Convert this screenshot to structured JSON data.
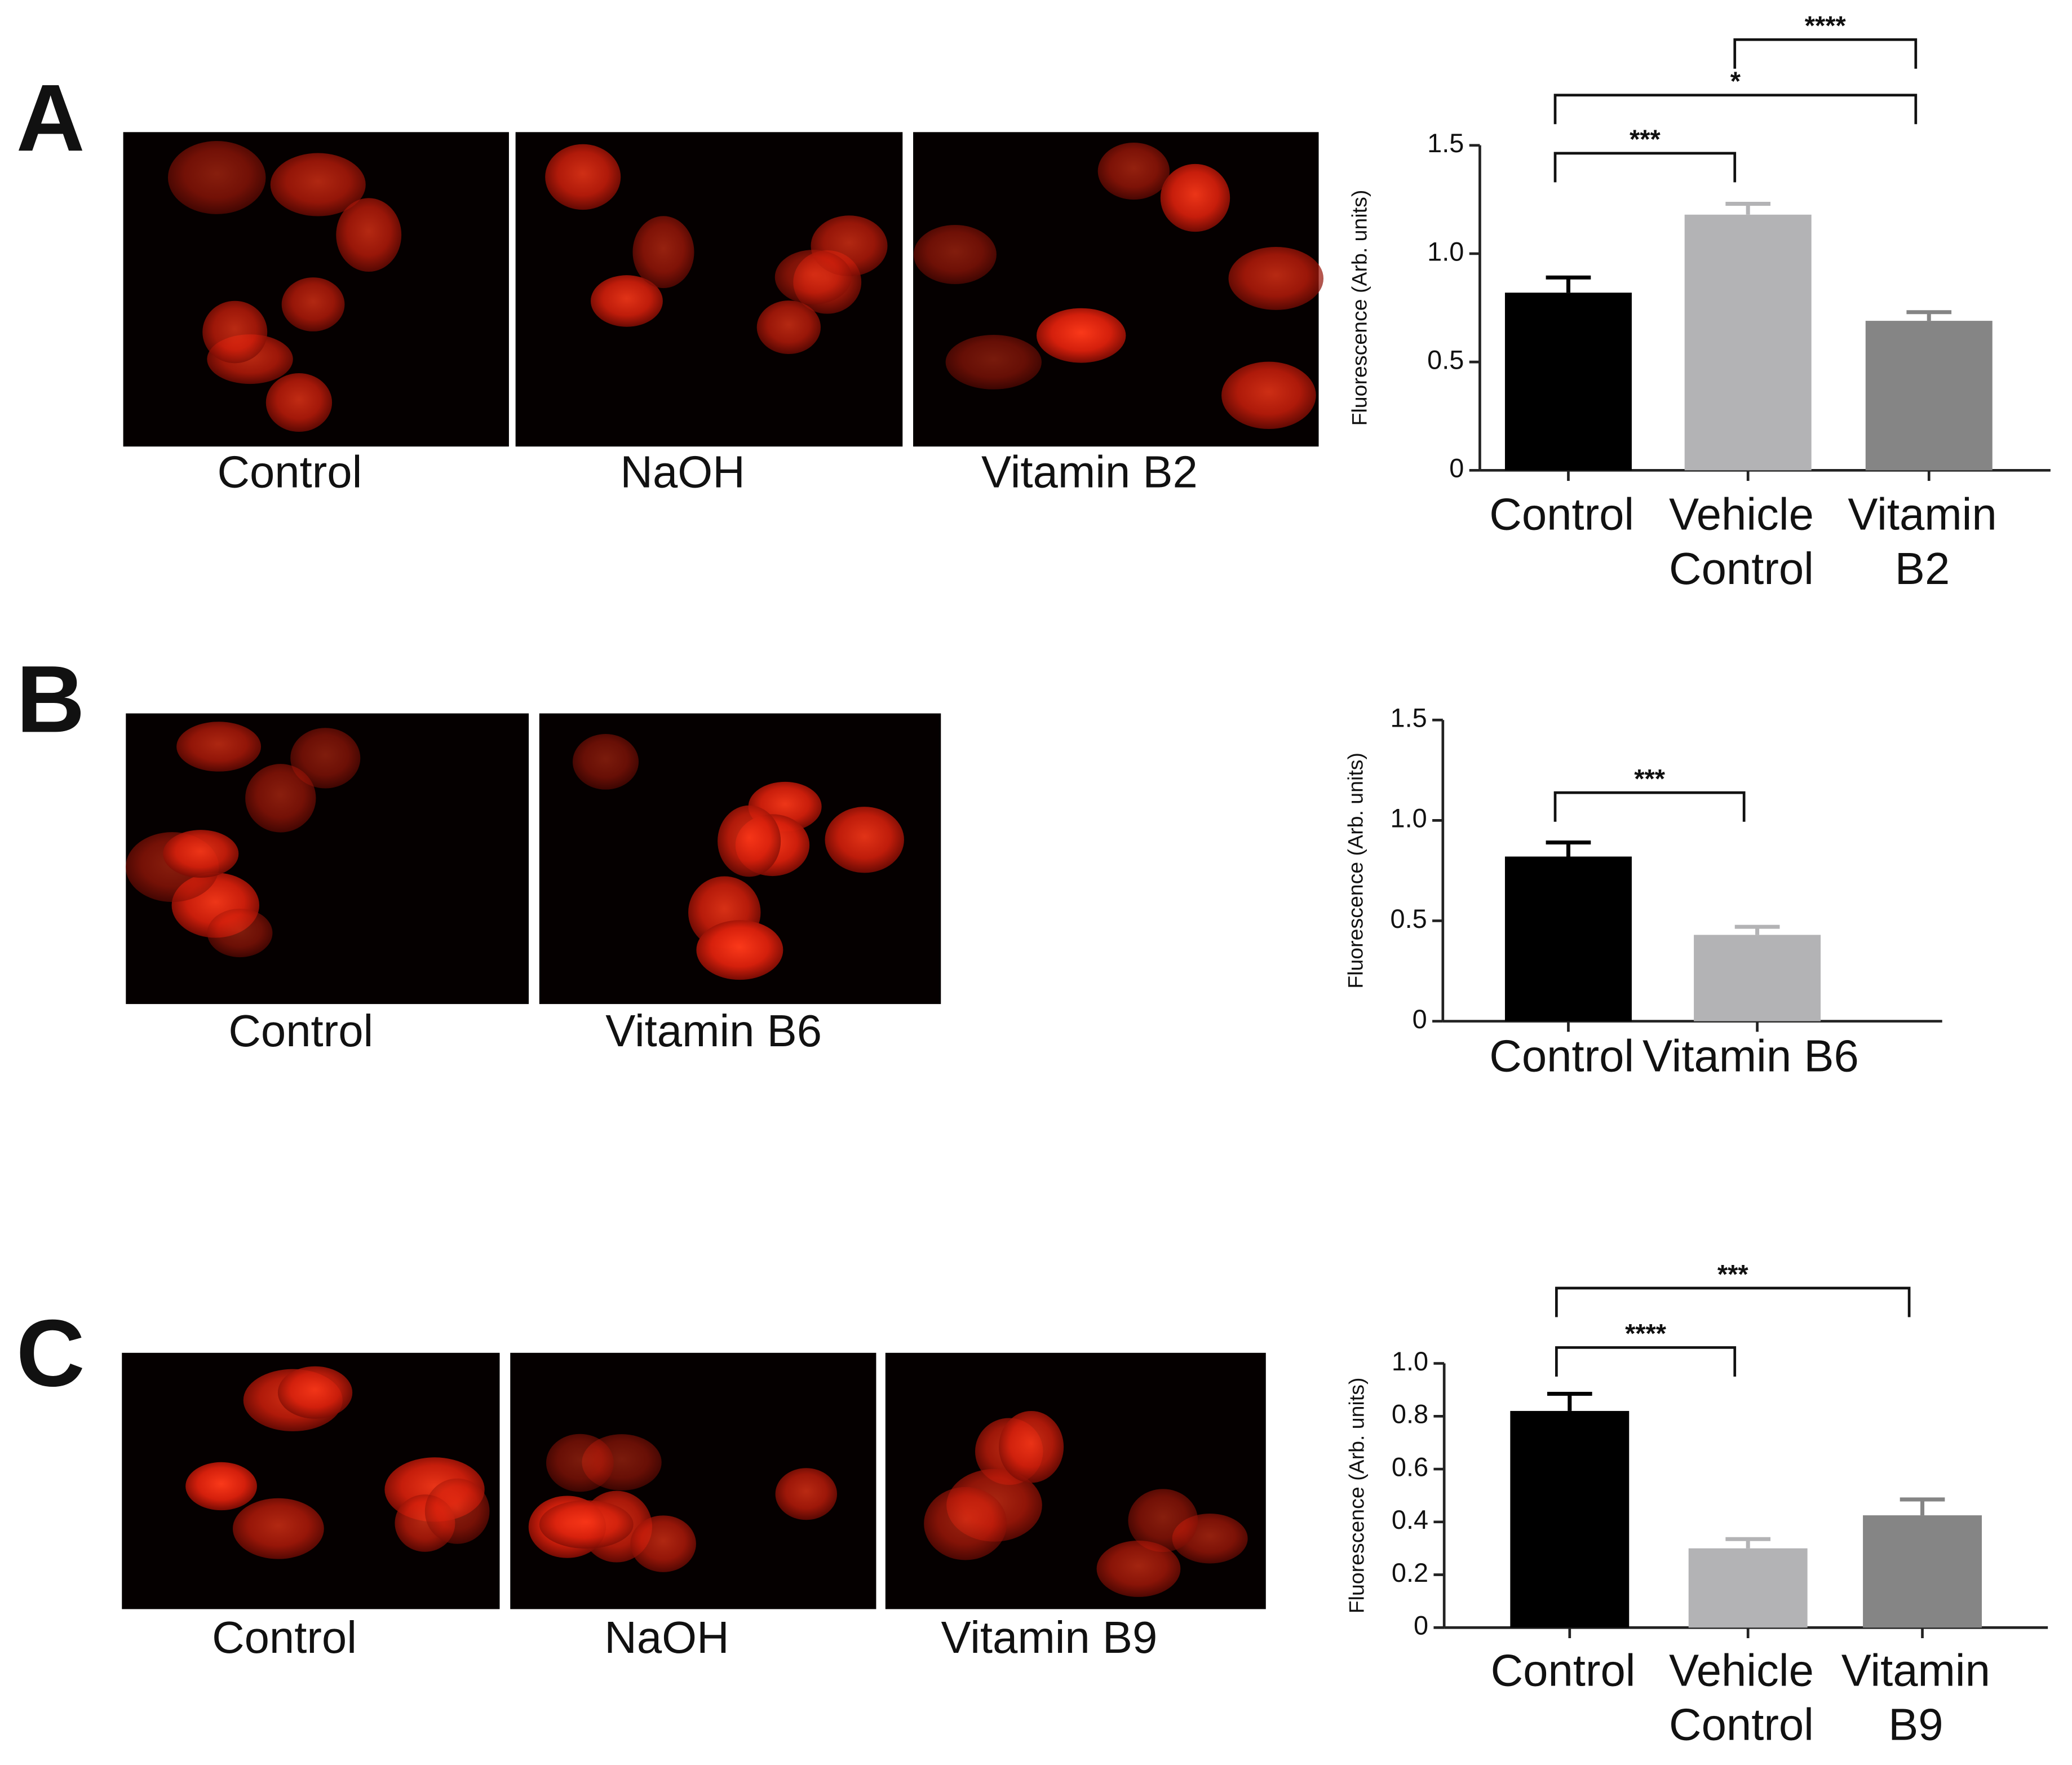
{
  "panels": [
    {
      "letter": "A",
      "images": [
        "Control",
        "NaOH",
        "Vitamin B2"
      ]
    },
    {
      "letter": "B",
      "images": [
        "Control",
        "Vitamin B6"
      ]
    },
    {
      "letter": "C",
      "images": [
        "Control",
        "NaOH",
        "Vitamin B9"
      ]
    }
  ],
  "chart_data": [
    {
      "type": "bar",
      "ylabel": "Fluorescence (Arb. units)",
      "categories": [
        "Control",
        "Vehicle Control",
        "Vitamin B2"
      ],
      "values": [
        0.82,
        1.18,
        0.69
      ],
      "errors": [
        0.07,
        0.05,
        0.04
      ],
      "colors": [
        "#000000",
        "#b3b3b5",
        "#858585"
      ],
      "ylim": [
        0,
        1.5
      ],
      "yticks": [
        0,
        0.5,
        {
          "value": 1,
          "label": "1.0"
        },
        1.5
      ],
      "significance": [
        {
          "from": 0,
          "to": 1,
          "label": "***"
        },
        {
          "from": 0,
          "to": 2,
          "label": "*"
        },
        {
          "from": 1,
          "to": 2,
          "label": "****"
        }
      ]
    },
    {
      "type": "bar",
      "ylabel": "Fluorescence (Arb. units)",
      "categories": [
        "Control",
        "Vitamin B6"
      ],
      "values": [
        0.82,
        0.43
      ],
      "errors": [
        0.07,
        0.04
      ],
      "colors": [
        "#000000",
        "#b3b3b5"
      ],
      "ylim": [
        0,
        1.5
      ],
      "yticks": [
        0,
        0.5,
        {
          "value": 1,
          "label": "1.0"
        },
        1.5
      ],
      "significance": [
        {
          "from": 0,
          "to": 1,
          "label": "***"
        }
      ]
    },
    {
      "type": "bar",
      "ylabel": "Fluorescence (Arb. units)",
      "categories": [
        "Control",
        "Vehicle Control",
        "Vitamin B9"
      ],
      "values": [
        0.82,
        0.3,
        0.425
      ],
      "errors": [
        0.065,
        0.035,
        0.06
      ],
      "colors": [
        "#000000",
        "#b3b3b5",
        "#858585"
      ],
      "ylim": [
        0,
        1
      ],
      "yticks": [
        0,
        0.2,
        0.4,
        0.6,
        0.8,
        {
          "value": 1,
          "label": "1.0"
        }
      ],
      "significance": [
        {
          "from": 0,
          "to": 1,
          "label": "****"
        },
        {
          "from": 0,
          "to": 2,
          "label": "***"
        }
      ]
    }
  ]
}
